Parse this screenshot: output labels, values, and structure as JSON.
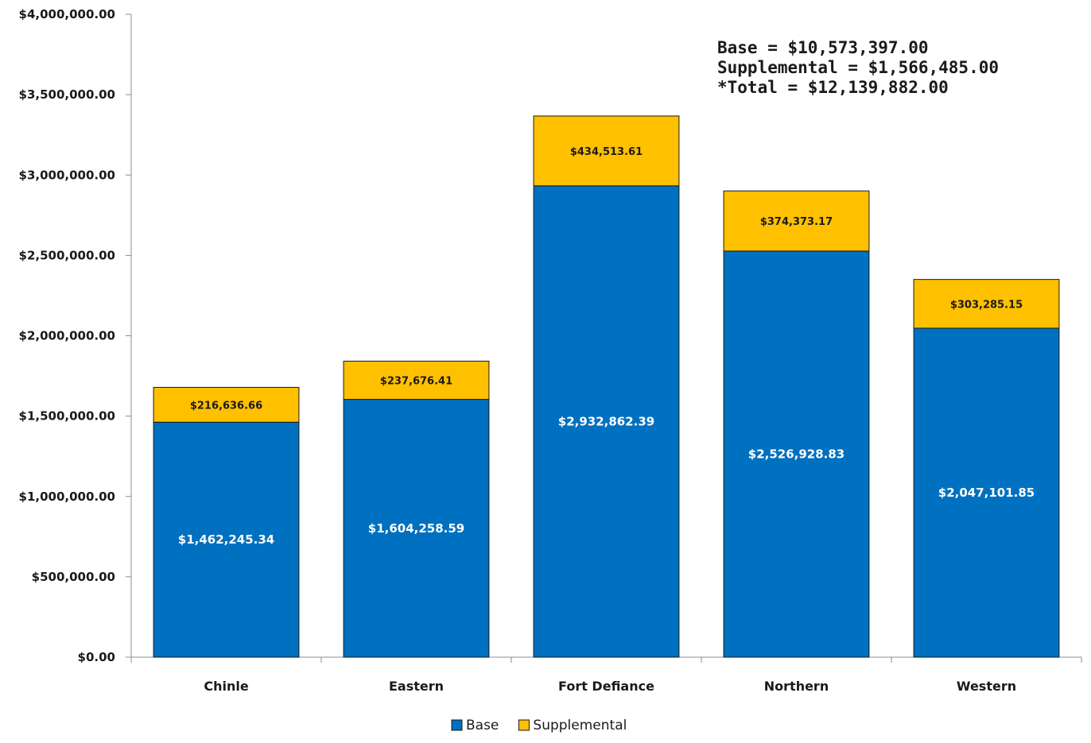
{
  "chart_data": {
    "type": "bar",
    "stacked": true,
    "categories": [
      "Chinle",
      "Eastern",
      "Fort Defiance",
      "Northern",
      "Western"
    ],
    "series": [
      {
        "name": "Base",
        "color": "#0070C0",
        "values": [
          1462245.34,
          1604258.59,
          2932862.39,
          2526928.83,
          2047101.85
        ],
        "labels": [
          "$1,462,245.34",
          "$1,604,258.59",
          "$2,932,862.39",
          "$2,526,928.83",
          "$2,047,101.85"
        ]
      },
      {
        "name": "Supplemental",
        "color": "#FFC000",
        "values": [
          216636.66,
          237676.41,
          434513.61,
          374373.17,
          303285.15
        ],
        "labels": [
          "$216,636.66",
          "$237,676.41",
          "$434,513.61",
          "$374,373.17",
          "$303,285.15"
        ]
      }
    ],
    "ylim": [
      0,
      4000000
    ],
    "yticks": [
      0,
      500000,
      1000000,
      1500000,
      2000000,
      2500000,
      3000000,
      3500000,
      4000000
    ],
    "ytick_labels": [
      "$0.00",
      "$500,000.00",
      "$1,000,000.00",
      "$1,500,000.00",
      "$2,000,000.00",
      "$2,500,000.00",
      "$3,000,000.00",
      "$3,500,000.00",
      "$4,000,000.00"
    ],
    "grid": false,
    "legend": "bottom",
    "annotations": [
      "Base = $10,573,397.00",
      "Supplemental = $1,566,485.00",
      "*Total = $12,139,882.00"
    ]
  }
}
